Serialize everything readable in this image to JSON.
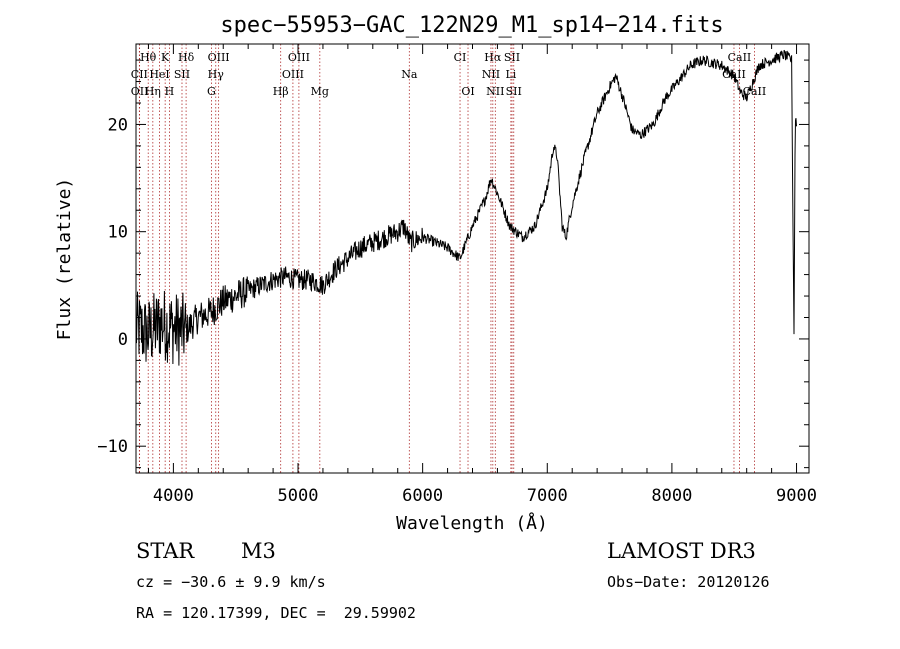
{
  "chart_data": {
    "type": "line",
    "title": "spec−55953−GAC_122N29_M1_sp14−214.fits",
    "xlabel": "Wavelength (Å)",
    "ylabel": "Flux (relative)",
    "xlim": [
      3700,
      9100
    ],
    "ylim": [
      -12.5,
      27.5
    ],
    "xticks": [
      4000,
      5000,
      6000,
      7000,
      8000,
      9000
    ],
    "yticks": [
      -10,
      0,
      10,
      20
    ],
    "series": [
      {
        "name": "flux",
        "anchors": [
          [
            3700,
            1.0
          ],
          [
            3800,
            0.5
          ],
          [
            3900,
            1.5
          ],
          [
            4000,
            1.0
          ],
          [
            4100,
            0.8
          ],
          [
            4200,
            2.0
          ],
          [
            4300,
            2.5
          ],
          [
            4400,
            3.5
          ],
          [
            4500,
            4.0
          ],
          [
            4600,
            4.5
          ],
          [
            4700,
            5.0
          ],
          [
            4800,
            5.5
          ],
          [
            4900,
            5.8
          ],
          [
            5000,
            5.5
          ],
          [
            5100,
            5.5
          ],
          [
            5200,
            5.0
          ],
          [
            5300,
            6.5
          ],
          [
            5400,
            7.5
          ],
          [
            5500,
            8.5
          ],
          [
            5600,
            9.0
          ],
          [
            5700,
            9.5
          ],
          [
            5800,
            10.0
          ],
          [
            5850,
            10.5
          ],
          [
            5900,
            9.0
          ],
          [
            6000,
            9.5
          ],
          [
            6100,
            9.0
          ],
          [
            6200,
            8.5
          ],
          [
            6300,
            7.5
          ],
          [
            6400,
            10.5
          ],
          [
            6500,
            13.0
          ],
          [
            6550,
            15.0
          ],
          [
            6620,
            13.0
          ],
          [
            6700,
            10.5
          ],
          [
            6800,
            9.5
          ],
          [
            6900,
            10.5
          ],
          [
            7000,
            14.0
          ],
          [
            7050,
            18.0
          ],
          [
            7080,
            17.0
          ],
          [
            7120,
            10.5
          ],
          [
            7150,
            9.5
          ],
          [
            7200,
            12.5
          ],
          [
            7300,
            17.0
          ],
          [
            7400,
            21.0
          ],
          [
            7500,
            23.5
          ],
          [
            7550,
            24.5
          ],
          [
            7620,
            22.0
          ],
          [
            7680,
            19.5
          ],
          [
            7750,
            19.0
          ],
          [
            7850,
            20.0
          ],
          [
            7950,
            22.5
          ],
          [
            8050,
            24.0
          ],
          [
            8150,
            25.5
          ],
          [
            8250,
            26.0
          ],
          [
            8400,
            25.5
          ],
          [
            8500,
            24.5
          ],
          [
            8550,
            23.0
          ],
          [
            8600,
            22.5
          ],
          [
            8700,
            25.5
          ],
          [
            8800,
            26.0
          ],
          [
            8900,
            26.5
          ],
          [
            8960,
            26.0
          ],
          [
            8980,
            0.5
          ],
          [
            8990,
            21.0
          ],
          [
            9000,
            20.0
          ]
        ]
      }
    ],
    "lines": [
      {
        "label": "Hθ",
        "x": 3798,
        "row": 0
      },
      {
        "label": "K",
        "x": 3934,
        "row": 0
      },
      {
        "label": "Hδ",
        "x": 4102,
        "row": 0
      },
      {
        "label": "OIII",
        "x": 4363,
        "row": 0
      },
      {
        "label": "OIII",
        "x": 5007,
        "row": 0
      },
      {
        "label": "CI",
        "x": 6300,
        "row": 0
      },
      {
        "label": "Hα",
        "x": 6563,
        "row": 0
      },
      {
        "label": "SII",
        "x": 6717,
        "row": 0
      },
      {
        "label": "CaII",
        "x": 8542,
        "row": 0
      },
      {
        "label": "CII",
        "x": 3727,
        "row": 1
      },
      {
        "label": "HeI",
        "x": 3889,
        "row": 1
      },
      {
        "label": "SII",
        "x": 4069,
        "row": 1
      },
      {
        "label": "Hγ",
        "x": 4340,
        "row": 1
      },
      {
        "label": "OIII",
        "x": 4959,
        "row": 1
      },
      {
        "label": "Na",
        "x": 5893,
        "row": 1
      },
      {
        "label": "NII",
        "x": 6548,
        "row": 1
      },
      {
        "label": "Li",
        "x": 6708,
        "row": 1
      },
      {
        "label": "CaII",
        "x": 8498,
        "row": 1
      },
      {
        "label": "OII",
        "x": 3729,
        "row": 2
      },
      {
        "label": "Hη",
        "x": 3835,
        "row": 2
      },
      {
        "label": "H",
        "x": 3968,
        "row": 2
      },
      {
        "label": "G",
        "x": 4305,
        "row": 2
      },
      {
        "label": "Hβ",
        "x": 4861,
        "row": 2
      },
      {
        "label": "Mg",
        "x": 5175,
        "row": 2
      },
      {
        "label": "OI",
        "x": 6364,
        "row": 2
      },
      {
        "label": "NII",
        "x": 6583,
        "row": 2
      },
      {
        "label": "SII",
        "x": 6731,
        "row": 2
      },
      {
        "label": "CaII",
        "x": 8662,
        "row": 2
      }
    ]
  },
  "info": {
    "class_label": "STAR",
    "subclass": "M3",
    "survey": "LAMOST DR3",
    "cz": "cz = −30.6 ± 9.9 km/s",
    "obs_date": "Obs−Date: 20120126",
    "coords": "RA = 120.17399, DEC =  29.59902"
  },
  "colors": {
    "line_marker": "#b03030",
    "spectrum": "#000000"
  }
}
